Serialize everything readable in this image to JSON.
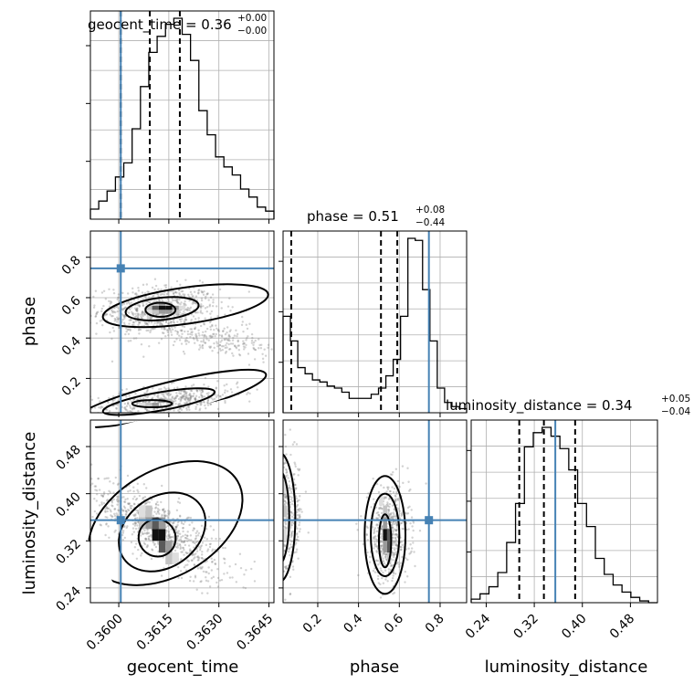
{
  "chart_data": {
    "type": "corner",
    "parameters": [
      "geocent_time",
      "phase",
      "luminosity_distance"
    ],
    "axis_labels": {
      "x": [
        "geocent_time",
        "phase",
        "luminosity_distance"
      ],
      "y": [
        "phase",
        "luminosity_distance"
      ]
    },
    "titles": [
      {
        "name": "geocent_time",
        "eq": " = 0.36",
        "sup": "+0.00",
        "sub": "−0.00"
      },
      {
        "name": "phase",
        "eq": " = 0.51",
        "sup": "+0.08",
        "sub": "−0.44"
      },
      {
        "name": "luminosity_distance",
        "eq": " = 0.34",
        "sup": "+0.05",
        "sub": "−0.04"
      }
    ],
    "ranges": {
      "geocent_time": [
        0.35915,
        0.36465
      ],
      "phase": [
        0.03,
        0.93
      ],
      "luminosity_distance": [
        0.215,
        0.525
      ]
    },
    "ticks": {
      "geocent_time": {
        "values": [
          0.36,
          0.3615,
          0.363,
          0.3645
        ],
        "labels": [
          "0.3600",
          "0.3615",
          "0.3630",
          "0.3645"
        ]
      },
      "phase": {
        "values": [
          0.2,
          0.4,
          0.6,
          0.8
        ],
        "labels": [
          "0.2",
          "0.4",
          "0.6",
          "0.8"
        ]
      },
      "luminosity_distance": {
        "values": [
          0.24,
          0.32,
          0.4,
          0.48
        ],
        "labels": [
          "0.24",
          "0.32",
          "0.40",
          "0.48"
        ]
      }
    },
    "truths": {
      "geocent_time": 0.36006,
      "phase": 0.745,
      "luminosity_distance": 0.355
    },
    "quantiles": {
      "geocent_time": [
        0.36006,
        0.36093,
        0.36183
      ],
      "phase": [
        0.07,
        0.51,
        0.59
      ],
      "luminosity_distance": [
        0.295,
        0.336,
        0.388
      ]
    },
    "histograms": {
      "geocent_time": [
        0.05,
        0.09,
        0.14,
        0.21,
        0.28,
        0.45,
        0.66,
        0.83,
        0.91,
        0.97,
        1.0,
        0.92,
        0.79,
        0.54,
        0.42,
        0.31,
        0.26,
        0.22,
        0.15,
        0.11,
        0.06,
        0.04
      ],
      "phase": [
        0.47,
        0.35,
        0.22,
        0.19,
        0.16,
        0.15,
        0.13,
        0.12,
        0.1,
        0.07,
        0.07,
        0.07,
        0.09,
        0.12,
        0.18,
        0.26,
        0.47,
        0.85,
        0.84,
        0.6,
        0.35,
        0.12,
        0.05,
        0.03,
        0.02
      ],
      "luminosity_distance": [
        0.02,
        0.05,
        0.09,
        0.17,
        0.34,
        0.56,
        0.88,
        0.96,
        0.99,
        0.94,
        0.87,
        0.75,
        0.56,
        0.43,
        0.25,
        0.16,
        0.1,
        0.06,
        0.03,
        0.01,
        0.0
      ]
    },
    "contour_levels": 3,
    "grid": true
  }
}
